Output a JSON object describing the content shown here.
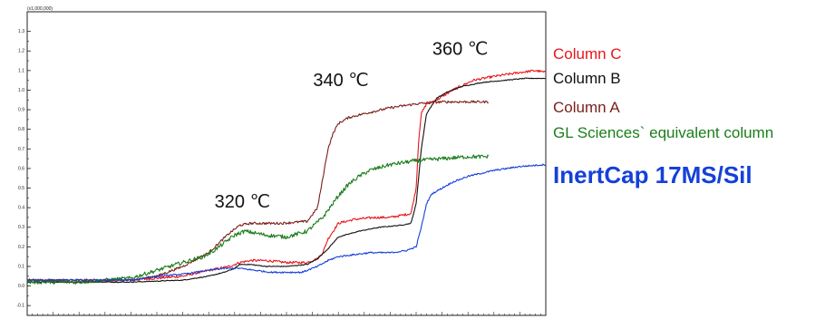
{
  "chart_data": {
    "type": "line",
    "multiplier_label": "(x1,000,000)",
    "y_ticks": [
      -0.1,
      0.0,
      0.1,
      0.2,
      0.3,
      0.4,
      0.5,
      0.6,
      0.7,
      0.8,
      0.9,
      1.0,
      1.1,
      1.2,
      1.3
    ],
    "y_tick_labels": [
      "-0.1",
      "0.0",
      "0.1",
      "0.2",
      "0.3",
      "0.4",
      "0.5",
      "0.6",
      "0.7",
      "0.8",
      "0.9",
      "1.0",
      "1.1",
      "1.2",
      "1.3"
    ],
    "ylim": [
      -0.15,
      1.4
    ],
    "xlim": [
      0,
      100
    ],
    "grid": false,
    "legend_placement": "right",
    "annotations": [
      {
        "text": "320 ℃",
        "x": 41.5,
        "y": 0.4
      },
      {
        "text": "340 ℃",
        "x": 60.5,
        "y": 1.02
      },
      {
        "text": "360 ℃",
        "x": 83.5,
        "y": 1.18
      }
    ],
    "series": [
      {
        "name": "Column C",
        "color": "#e8161b",
        "highlight": false,
        "noise": 0.006,
        "x": [
          0,
          10,
          20,
          30,
          35,
          39,
          41,
          43,
          46,
          50,
          54,
          56,
          57,
          58,
          60,
          63,
          67,
          70,
          74,
          75,
          75.5,
          76,
          77,
          79,
          82,
          86,
          90,
          95,
          98,
          100
        ],
        "y": [
          0.03,
          0.02,
          0.03,
          0.05,
          0.08,
          0.1,
          0.12,
          0.13,
          0.13,
          0.12,
          0.12,
          0.14,
          0.17,
          0.24,
          0.32,
          0.34,
          0.35,
          0.35,
          0.37,
          0.5,
          0.75,
          0.88,
          0.93,
          0.95,
          1.0,
          1.05,
          1.07,
          1.09,
          1.1,
          1.09
        ]
      },
      {
        "name": "Column B",
        "color": "#111111",
        "highlight": false,
        "noise": 0.002,
        "x": [
          0,
          10,
          20,
          30,
          35,
          38,
          40,
          41,
          43,
          46,
          50,
          54,
          56,
          58,
          60,
          64,
          68,
          72,
          74,
          75,
          76,
          77,
          79,
          81,
          84,
          88,
          92,
          96,
          100
        ],
        "y": [
          0.02,
          0.02,
          0.02,
          0.03,
          0.05,
          0.07,
          0.09,
          0.11,
          0.11,
          0.1,
          0.1,
          0.11,
          0.14,
          0.19,
          0.25,
          0.28,
          0.3,
          0.31,
          0.32,
          0.42,
          0.7,
          0.88,
          0.96,
          0.99,
          1.02,
          1.04,
          1.05,
          1.06,
          1.06
        ]
      },
      {
        "name": "Column A",
        "color": "#7a1f1a",
        "highlight": false,
        "noise": 0.006,
        "x": [
          0,
          10,
          20,
          25,
          30,
          35,
          37,
          39,
          41,
          43,
          46,
          49,
          54,
          56,
          57,
          58,
          59,
          60,
          62,
          65,
          70,
          75,
          80,
          85,
          89
        ],
        "y": [
          0.03,
          0.03,
          0.03,
          0.05,
          0.1,
          0.17,
          0.22,
          0.27,
          0.31,
          0.32,
          0.32,
          0.32,
          0.33,
          0.4,
          0.55,
          0.7,
          0.78,
          0.83,
          0.86,
          0.88,
          0.91,
          0.93,
          0.94,
          0.94,
          0.94
        ]
      },
      {
        "name": "GL Sciences` equivalent column",
        "color": "#1a7d1a",
        "highlight": false,
        "noise": 0.01,
        "x": [
          0,
          10,
          20,
          25,
          30,
          34,
          36,
          38,
          40,
          42,
          44,
          46,
          50,
          54,
          57,
          60,
          62,
          64,
          66,
          70,
          75,
          80,
          85,
          89
        ],
        "y": [
          0.02,
          0.02,
          0.04,
          0.08,
          0.12,
          0.15,
          0.18,
          0.22,
          0.26,
          0.28,
          0.27,
          0.26,
          0.25,
          0.28,
          0.35,
          0.46,
          0.52,
          0.56,
          0.59,
          0.62,
          0.64,
          0.65,
          0.66,
          0.66
        ]
      },
      {
        "name": "InertCap 17MS/Sil",
        "color": "#1640d9",
        "highlight": true,
        "noise": 0.004,
        "x": [
          0,
          10,
          20,
          25,
          30,
          35,
          38,
          41,
          44,
          47,
          50,
          53,
          56,
          58,
          60,
          63,
          66,
          70,
          73,
          75,
          76,
          77,
          78,
          80,
          82,
          85,
          90,
          95,
          100
        ],
        "y": [
          0.03,
          0.03,
          0.03,
          0.05,
          0.06,
          0.08,
          0.09,
          0.09,
          0.08,
          0.07,
          0.07,
          0.07,
          0.1,
          0.13,
          0.15,
          0.16,
          0.17,
          0.17,
          0.18,
          0.2,
          0.3,
          0.42,
          0.47,
          0.5,
          0.53,
          0.56,
          0.59,
          0.61,
          0.62
        ]
      }
    ]
  }
}
